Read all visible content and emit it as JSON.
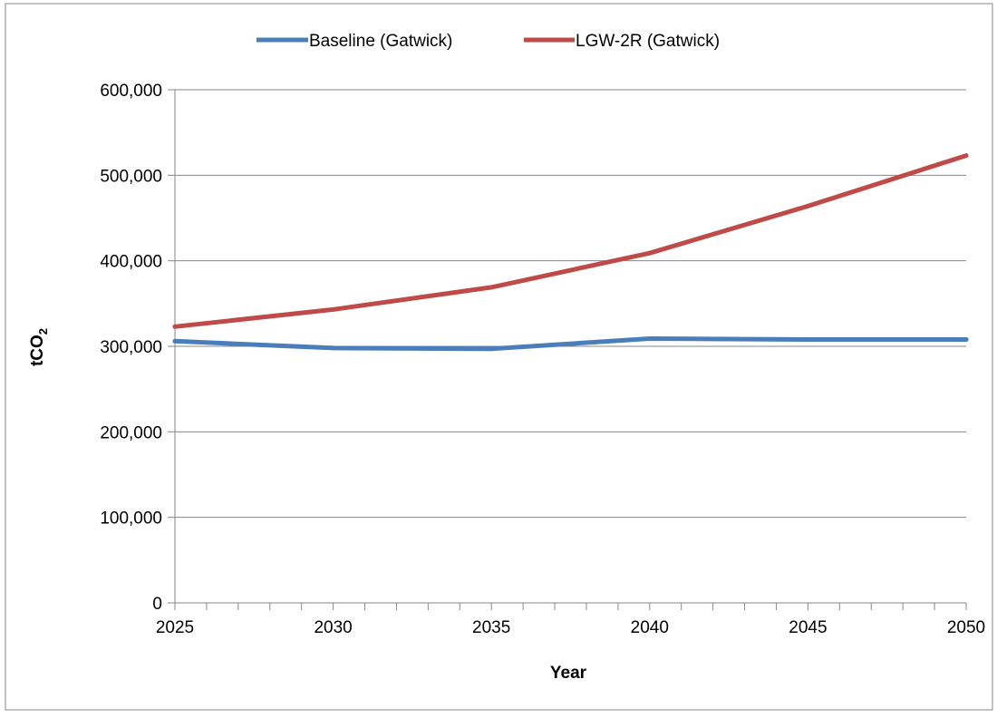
{
  "chart_data": {
    "type": "line",
    "title": "",
    "xlabel": "Year",
    "ylabel_main": "tCO",
    "ylabel_sub": "2",
    "x": [
      2025,
      2030,
      2035,
      2040,
      2045,
      2050
    ],
    "x_ticks": [
      "2025",
      "2030",
      "2035",
      "2040",
      "2045",
      "2050"
    ],
    "y_ticks": [
      "0",
      "100,000",
      "200,000",
      "300,000",
      "400,000",
      "500,000",
      "600,000"
    ],
    "y_tick_values": [
      0,
      100000,
      200000,
      300000,
      400000,
      500000,
      600000
    ],
    "xlim": [
      2025,
      2050
    ],
    "ylim": [
      0,
      600000
    ],
    "grid": "horizontal",
    "legend_position": "top",
    "series": [
      {
        "name": "Baseline (Gatwick)",
        "color": "#4a7ebb",
        "values": [
          306000,
          298000,
          297000,
          309000,
          308000,
          308000
        ]
      },
      {
        "name": "LGW-2R (Gatwick)",
        "color": "#be4b48",
        "values": [
          323000,
          343000,
          369000,
          409000,
          464000,
          523000
        ]
      }
    ]
  }
}
